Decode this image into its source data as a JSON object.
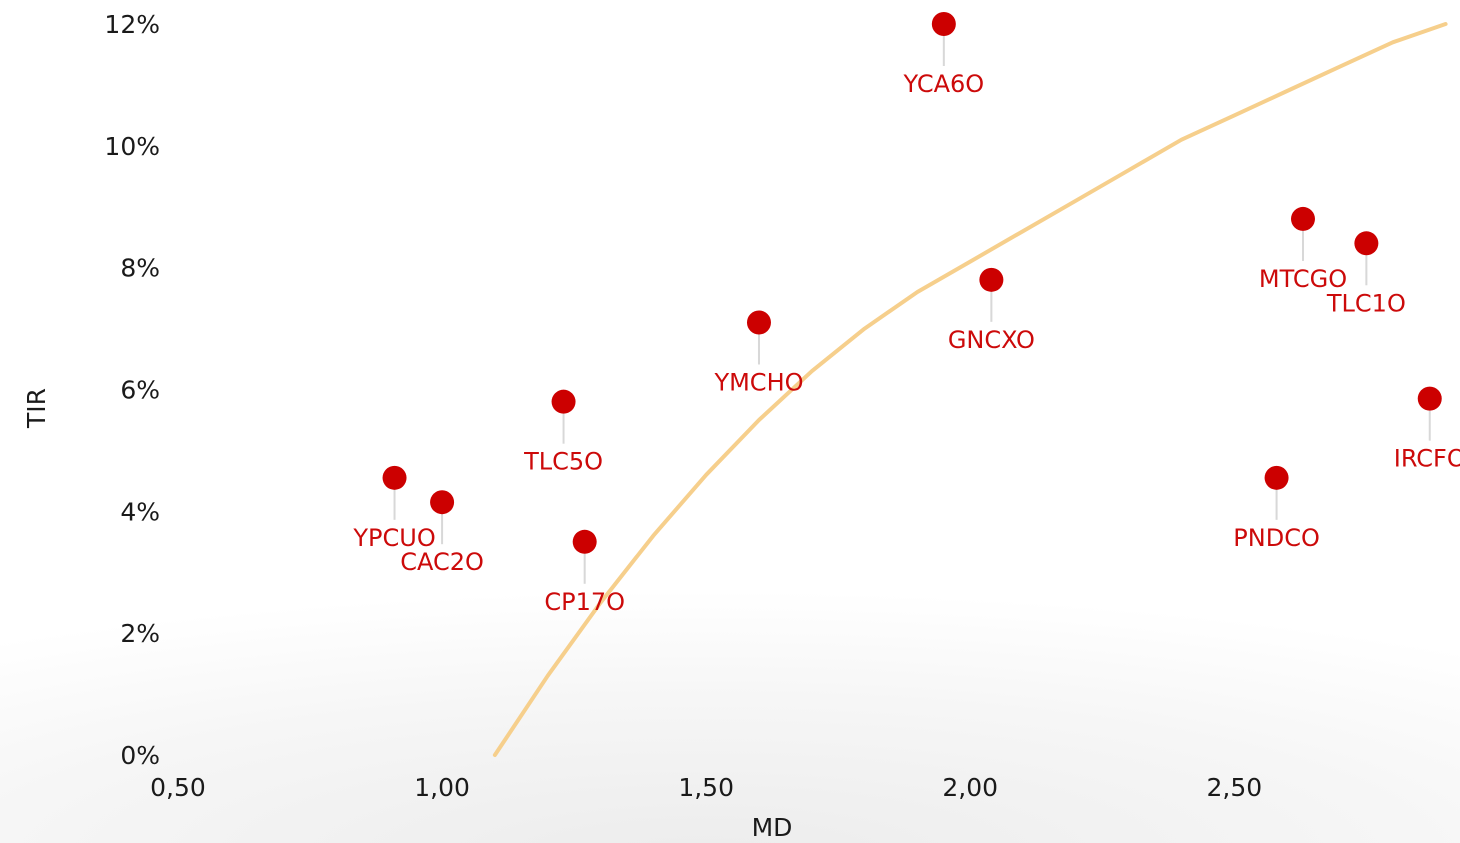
{
  "colors": {
    "point": "#cc0000",
    "curve": "#f6cf8c",
    "stem": "#d8d8d8",
    "label": "#cc0a0a",
    "text": "#1a1a1a"
  },
  "chart_data": {
    "type": "scatter",
    "xlabel": "MD",
    "ylabel": "TIR",
    "xlim": [
      0.5,
      2.95
    ],
    "ylim": [
      0,
      12
    ],
    "x_ticks": [
      "0,50",
      "1,00",
      "1,50",
      "2,00",
      "2,50"
    ],
    "y_ticks": [
      "0%",
      "2%",
      "4%",
      "6%",
      "8%",
      "10%",
      "12%"
    ],
    "grid": false,
    "legend": "none",
    "points": [
      {
        "label": "YCA6O",
        "x": 1.95,
        "y": 12.0
      },
      {
        "label": "MTCGO",
        "x": 2.63,
        "y": 8.8
      },
      {
        "label": "TLC1O",
        "x": 2.75,
        "y": 8.4
      },
      {
        "label": "GNCXO",
        "x": 2.04,
        "y": 7.8
      },
      {
        "label": "YMCHO",
        "x": 1.6,
        "y": 7.1
      },
      {
        "label": "IRCFO",
        "x": 2.87,
        "y": 5.85
      },
      {
        "label": "TLC5O",
        "x": 1.23,
        "y": 5.8
      },
      {
        "label": "PNDCO",
        "x": 2.58,
        "y": 4.55
      },
      {
        "label": "YPCUO",
        "x": 0.91,
        "y": 4.55
      },
      {
        "label": "CAC2O",
        "x": 1.0,
        "y": 4.15
      },
      {
        "label": "CP17O",
        "x": 1.27,
        "y": 3.5
      }
    ],
    "curve": {
      "x": [
        1.1,
        1.2,
        1.3,
        1.4,
        1.5,
        1.6,
        1.7,
        1.8,
        1.9,
        2.0,
        2.1,
        2.2,
        2.3,
        2.4,
        2.5,
        2.6,
        2.7,
        2.8,
        2.9
      ],
      "y": [
        0.0,
        1.3,
        2.5,
        3.6,
        4.6,
        5.5,
        6.3,
        7.0,
        7.6,
        8.1,
        8.6,
        9.1,
        9.6,
        10.1,
        10.5,
        10.9,
        11.3,
        11.7,
        12.0
      ]
    }
  }
}
